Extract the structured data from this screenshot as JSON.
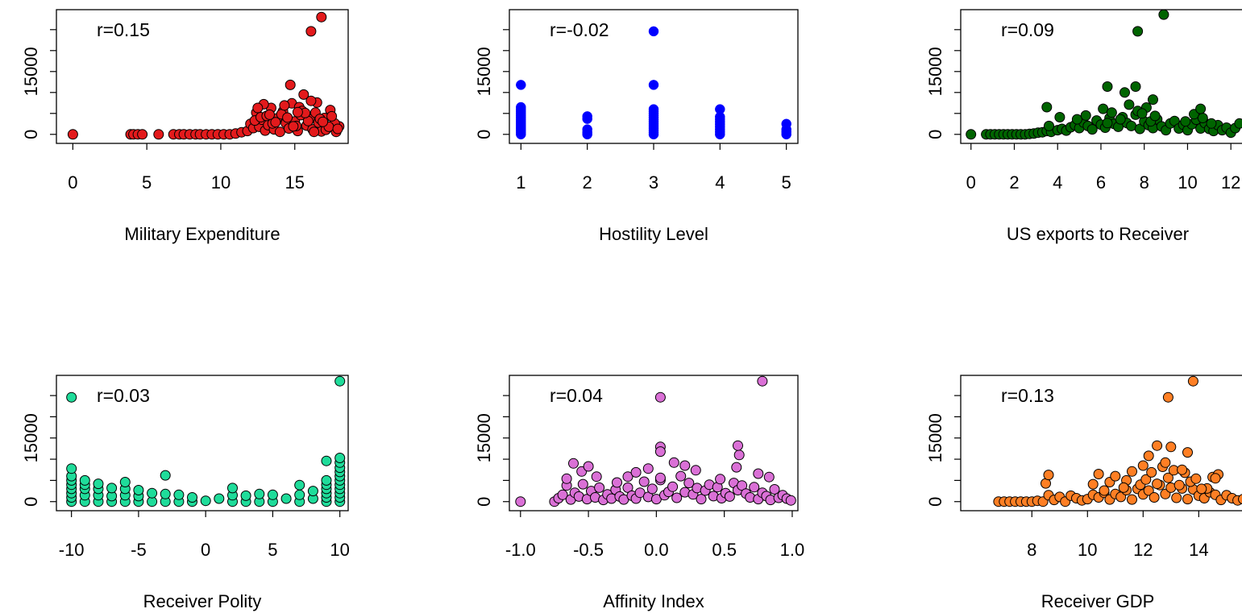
{
  "chart_data": [
    {
      "type": "scatter",
      "xlabel": "Military Expenditure",
      "annotation": "r=0.15",
      "color": "#e31a1c",
      "xlim": [
        -1,
        18.5
      ],
      "xticks": [
        "0",
        "5",
        "10",
        "15"
      ],
      "ylim": [
        -1000,
        29000
      ],
      "yticks": [
        "0",
        "15000"
      ],
      "x": [
        0,
        3.9,
        4.1,
        4.4,
        4.7,
        5.8,
        6.8,
        7.2,
        7.5,
        7.9,
        8.3,
        8.6,
        9.0,
        9.4,
        9.8,
        10.2,
        10.6,
        11.0,
        11.4,
        11.8,
        12.0,
        12.2,
        12.4,
        12.6,
        12.8,
        13.0,
        13.2,
        13.4,
        13.6,
        13.8,
        14.0,
        14.2,
        14.4,
        14.6,
        14.8,
        15.0,
        15.2,
        15.4,
        15.6,
        15.8,
        16.0,
        16.2,
        16.4,
        16.6,
        16.8,
        17.0,
        17.2,
        17.4,
        17.6,
        17.8,
        18.0,
        12.3,
        12.7,
        13.5,
        14.1,
        14.7,
        15.3,
        15.9,
        16.5,
        17.1,
        17.7,
        13.1,
        14.3,
        15.5,
        16.1,
        16.7,
        17.3,
        12.9,
        13.7,
        14.5,
        15.1,
        15.7,
        16.3,
        17.5,
        12.5,
        14.9,
        16.9,
        13.3,
        15.2,
        17.9,
        16.1,
        16.8
      ],
      "y": [
        0,
        0,
        0,
        0,
        0,
        0,
        0,
        0,
        0,
        0,
        0,
        0,
        0,
        0,
        0,
        0,
        0,
        200,
        500,
        800,
        2500,
        1500,
        5200,
        1800,
        3500,
        900,
        2200,
        6300,
        1200,
        3800,
        600,
        5500,
        2700,
        1400,
        7400,
        3100,
        800,
        4600,
        9500,
        2100,
        3600,
        1200,
        5200,
        2800,
        700,
        3900,
        1500,
        5800,
        2300,
        600,
        1900,
        3300,
        4100,
        2600,
        4800,
        11800,
        6500,
        3200,
        7600,
        1100,
        2600,
        4400,
        6900,
        5600,
        8000,
        3700,
        1800,
        7200,
        2900,
        4000,
        2000,
        5100,
        600,
        4300,
        6300,
        1900,
        3000,
        4700,
        5300,
        1300,
        24600,
        28000
      ]
    },
    {
      "type": "scatter",
      "xlabel": "Hostility Level",
      "annotation": "r=-0.02",
      "color": "#0000ff",
      "xlim": [
        0.85,
        5.15
      ],
      "xticks": [
        "1",
        "2",
        "3",
        "4",
        "5"
      ],
      "ylim": [
        -1000,
        29000
      ],
      "yticks": [
        "0",
        "15000"
      ],
      "x": [
        1,
        1,
        1,
        1,
        1,
        1,
        1,
        1,
        1,
        1,
        1,
        1,
        1,
        1,
        1,
        2,
        2,
        2,
        2,
        2,
        3,
        3,
        3,
        3,
        3,
        3,
        3,
        3,
        3,
        3,
        3,
        3,
        3,
        3,
        3,
        4,
        4,
        4,
        4,
        4,
        4,
        4,
        4,
        4,
        5,
        5,
        5,
        5
      ],
      "y": [
        0,
        500,
        1000,
        1500,
        2000,
        2500,
        3000,
        3500,
        4000,
        4500,
        5000,
        5500,
        6000,
        6500,
        11800,
        0,
        500,
        1200,
        3700,
        4300,
        0,
        500,
        1000,
        1500,
        2000,
        2500,
        3000,
        3500,
        4000,
        4500,
        5000,
        5500,
        6000,
        11800,
        24600,
        0,
        600,
        1200,
        1800,
        2400,
        3000,
        3600,
        4200,
        6000,
        0,
        600,
        1200,
        2500
      ]
    },
    {
      "type": "scatter",
      "xlabel": "US exports to Receiver",
      "annotation": "r=0.09",
      "color": "#006400",
      "xlim": [
        -0.4,
        12.7
      ],
      "xticks": [
        "0",
        "2",
        "4",
        "6",
        "8",
        "10",
        "12"
      ],
      "ylim": [
        -1000,
        29000
      ],
      "yticks": [
        "0",
        "15000"
      ],
      "x": [
        0,
        0.7,
        0.9,
        1.1,
        1.3,
        1.5,
        1.7,
        1.9,
        2.1,
        2.3,
        2.5,
        2.7,
        2.9,
        3.1,
        3.3,
        3.5,
        3.7,
        4.0,
        4.2,
        4.4,
        4.6,
        4.8,
        5.0,
        5.2,
        5.4,
        5.6,
        5.8,
        6.0,
        6.2,
        6.4,
        6.6,
        6.8,
        7.0,
        7.2,
        7.4,
        7.6,
        7.8,
        8.0,
        8.2,
        8.4,
        8.6,
        8.8,
        9.0,
        9.2,
        9.4,
        9.6,
        9.8,
        10.0,
        10.2,
        10.4,
        10.6,
        10.8,
        11.0,
        11.2,
        11.4,
        11.6,
        11.8,
        12.0,
        12.2,
        12.4,
        3.6,
        4.1,
        4.9,
        5.3,
        6.1,
        6.5,
        6.9,
        7.3,
        7.7,
        8.1,
        8.3,
        8.5,
        9.9,
        10.3,
        10.7,
        11.1,
        7.9,
        6.3,
        3.5,
        6.3,
        7.1,
        7.6,
        8.4,
        10.6,
        7.7,
        8.9
      ],
      "y": [
        0,
        0,
        0,
        0,
        0,
        0,
        0,
        0,
        0,
        0,
        0,
        100,
        200,
        400,
        500,
        800,
        600,
        1000,
        1300,
        900,
        1700,
        2200,
        1500,
        2800,
        2000,
        1200,
        3300,
        2300,
        1600,
        3900,
        2500,
        1800,
        4100,
        2700,
        2000,
        4700,
        1300,
        3100,
        2200,
        1500,
        3600,
        1900,
        1000,
        2600,
        3200,
        1400,
        2300,
        1000,
        2400,
        3500,
        1400,
        2700,
        1300,
        800,
        2200,
        1000,
        1600,
        400,
        1500,
        2600,
        2000,
        4100,
        3600,
        4500,
        6100,
        5200,
        3600,
        7100,
        5600,
        6400,
        3100,
        4400,
        3100,
        4800,
        3900,
        2600,
        5000,
        2700,
        6500,
        11400,
        10000,
        11400,
        8300,
        6100,
        24600,
        28600
      ]
    },
    {
      "type": "scatter",
      "xlabel": "Receiver Polity",
      "annotation": "r=0.03",
      "color": "#1fdc9a",
      "xlim": [
        -11,
        10.5
      ],
      "xticks": [
        "-10",
        "-5",
        "0",
        "5",
        "10"
      ],
      "ylim": [
        -1000,
        29000
      ],
      "yticks": [
        "0",
        "15000"
      ],
      "x": [
        -10,
        -10,
        -10,
        -10,
        -10,
        -10,
        -10,
        -10,
        -10,
        -9,
        -9,
        -9,
        -9,
        -9,
        -8,
        -8,
        -8,
        -8,
        -7,
        -7,
        -7,
        -6,
        -6,
        -6,
        -6,
        -5,
        -5,
        -5,
        -4,
        -4,
        -3,
        -3,
        -3,
        -2,
        -2,
        -1,
        -1,
        0,
        1,
        2,
        2,
        2,
        3,
        3,
        4,
        4,
        5,
        5,
        6,
        7,
        7,
        7,
        8,
        8,
        9,
        9,
        9,
        9,
        9,
        9,
        9,
        10,
        10,
        10,
        10,
        10,
        10,
        10,
        10,
        10,
        10,
        10,
        10
      ],
      "y": [
        0,
        1000,
        2000,
        3000,
        4000,
        5000,
        6000,
        7800,
        24600,
        0,
        1500,
        3000,
        4000,
        5000,
        0,
        1500,
        3000,
        4200,
        0,
        1300,
        3200,
        0,
        1500,
        3000,
        4600,
        0,
        1300,
        2700,
        0,
        2000,
        0,
        1800,
        6200,
        0,
        1600,
        0,
        1000,
        200,
        700,
        0,
        1500,
        3200,
        0,
        1400,
        0,
        1800,
        0,
        1600,
        700,
        0,
        1600,
        3900,
        700,
        2500,
        0,
        1000,
        2000,
        3000,
        4000,
        5000,
        9600,
        0,
        1000,
        2000,
        3000,
        4000,
        5000,
        6000,
        7000,
        8000,
        9200,
        10300,
        28400
      ]
    },
    {
      "type": "scatter",
      "xlabel": "Affinity Index",
      "annotation": "r=0.04",
      "color": "#da70d6",
      "xlim": [
        -1.07,
        1.03
      ],
      "xticks": [
        "-1.0",
        "-0.5",
        "0.0",
        "0.5",
        "1.0"
      ],
      "ylim": [
        -1000,
        29000
      ],
      "yticks": [
        "0",
        "15000"
      ],
      "x": [
        -1.0,
        -0.75,
        -0.72,
        -0.69,
        -0.66,
        -0.63,
        -0.6,
        -0.57,
        -0.54,
        -0.51,
        -0.48,
        -0.45,
        -0.42,
        -0.39,
        -0.36,
        -0.33,
        -0.3,
        -0.27,
        -0.24,
        -0.21,
        -0.18,
        -0.15,
        -0.12,
        -0.09,
        -0.06,
        -0.03,
        0.0,
        0.03,
        0.06,
        0.09,
        0.12,
        0.15,
        0.18,
        0.21,
        0.24,
        0.27,
        0.3,
        0.33,
        0.36,
        0.39,
        0.42,
        0.45,
        0.48,
        0.51,
        0.54,
        0.57,
        0.6,
        0.63,
        0.66,
        0.69,
        0.72,
        0.75,
        0.78,
        0.81,
        0.84,
        0.87,
        0.9,
        0.93,
        0.96,
        0.99,
        -0.66,
        -0.61,
        -0.55,
        -0.5,
        -0.44,
        -0.29,
        -0.21,
        -0.15,
        -0.06,
        0.03,
        0.13,
        0.21,
        0.29,
        0.47,
        0.59,
        0.61,
        0.75,
        0.83,
        0.03,
        0.03,
        0.6,
        0.03,
        0.78
      ],
      "y": [
        0,
        0,
        800,
        1600,
        3800,
        500,
        2100,
        1200,
        4100,
        600,
        2500,
        1000,
        3300,
        400,
        1700,
        700,
        2800,
        1200,
        500,
        3300,
        1400,
        700,
        2100,
        4700,
        1100,
        3000,
        600,
        5100,
        1500,
        2300,
        3500,
        900,
        6000,
        2200,
        4400,
        1700,
        3200,
        600,
        2600,
        4000,
        1300,
        3400,
        800,
        2000,
        1200,
        4400,
        2700,
        3800,
        1900,
        1000,
        3400,
        600,
        2100,
        1300,
        400,
        2900,
        900,
        1500,
        700,
        300,
        5400,
        9000,
        7100,
        8300,
        5900,
        4500,
        5900,
        6900,
        7800,
        5600,
        9200,
        8500,
        7400,
        5300,
        8100,
        11000,
        6600,
        5800,
        12900,
        11800,
        13200,
        24600,
        28400
      ]
    },
    {
      "type": "scatter",
      "xlabel": "Receiver GDP",
      "annotation": "r=0.13",
      "color": "#ff7f24",
      "xlim": [
        5.5,
        15.7
      ],
      "xticks": [
        "8",
        "10",
        "12",
        "14"
      ],
      "ylim": [
        -1000,
        29000
      ],
      "yticks": [
        "0",
        "15000"
      ],
      "x": [
        6.8,
        7.0,
        7.2,
        7.4,
        7.6,
        7.8,
        8.0,
        8.2,
        8.4,
        8.6,
        8.8,
        9.0,
        9.2,
        9.4,
        9.6,
        9.8,
        10.0,
        10.2,
        10.4,
        10.6,
        10.8,
        11.0,
        11.2,
        11.4,
        11.6,
        11.8,
        12.0,
        12.2,
        12.4,
        12.6,
        12.8,
        13.0,
        13.2,
        13.4,
        13.6,
        13.8,
        14.0,
        14.2,
        14.4,
        14.6,
        14.8,
        15.0,
        15.2,
        15.4,
        15.6,
        8.5,
        8.6,
        10.2,
        10.4,
        10.8,
        11.0,
        11.4,
        11.6,
        11.9,
        12.1,
        12.3,
        12.5,
        12.7,
        12.9,
        13.1,
        13.3,
        13.5,
        13.7,
        13.9,
        14.3,
        14.5,
        14.7,
        10.6,
        11.3,
        12.2,
        12.8,
        13.4,
        14.1,
        14.6,
        12.0,
        12.5,
        13.0,
        13.6,
        12.9,
        13.8
      ],
      "y": [
        0,
        0,
        0,
        0,
        0,
        0,
        0,
        200,
        0,
        1500,
        400,
        1100,
        0,
        1400,
        800,
        300,
        600,
        1600,
        1000,
        2100,
        500,
        1800,
        1100,
        2700,
        500,
        3000,
        1700,
        2600,
        1000,
        3900,
        1800,
        3300,
        900,
        3100,
        600,
        2900,
        1400,
        800,
        2200,
        1600,
        400,
        1500,
        800,
        300,
        600,
        4300,
        6300,
        4100,
        6500,
        4600,
        6000,
        5000,
        7100,
        4000,
        5200,
        6900,
        4200,
        8200,
        5600,
        7400,
        3900,
        6800,
        4700,
        5400,
        3100,
        5800,
        6400,
        2600,
        3300,
        10800,
        9200,
        7500,
        3000,
        5500,
        8500,
        13200,
        12900,
        11600,
        24600,
        28400
      ]
    }
  ]
}
